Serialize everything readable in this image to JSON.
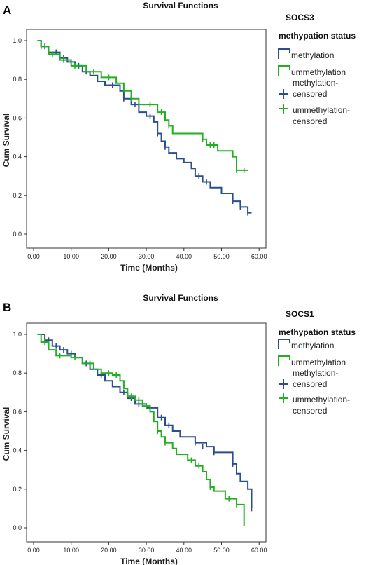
{
  "chart_data": [
    {
      "panel": "A",
      "type": "line",
      "title": "Survival Functions",
      "xlabel": "Time (Months)",
      "ylabel": "Cum Survival",
      "xlim": [
        0,
        60
      ],
      "ylim": [
        0,
        1
      ],
      "x_ticks": [
        "0.00",
        "10.00",
        "20.00",
        "30.00",
        "40.00",
        "50.00",
        "60.00"
      ],
      "y_ticks": [
        "0.0",
        "0.2",
        "0.4",
        "0.6",
        "0.8",
        "1.0"
      ],
      "legend": {
        "title_lines": [
          "SOCS3",
          "methypation status"
        ],
        "entries": [
          "methylation",
          "ummethylation",
          "methylation-censored",
          "ummethylation-censored"
        ]
      },
      "series": [
        {
          "name": "methylation",
          "color": "#2c4e8e",
          "points": [
            [
              1,
              1.0
            ],
            [
              2,
              0.97
            ],
            [
              4,
              0.94
            ],
            [
              7,
              0.91
            ],
            [
              9,
              0.89
            ],
            [
              11,
              0.87
            ],
            [
              13,
              0.84
            ],
            [
              15,
              0.82
            ],
            [
              17,
              0.79
            ],
            [
              19,
              0.77
            ],
            [
              23,
              0.74
            ],
            [
              24,
              0.7
            ],
            [
              26,
              0.67
            ],
            [
              28,
              0.63
            ],
            [
              30,
              0.61
            ],
            [
              32,
              0.58
            ],
            [
              33,
              0.52
            ],
            [
              34,
              0.48
            ],
            [
              35,
              0.45
            ],
            [
              36,
              0.42
            ],
            [
              38,
              0.39
            ],
            [
              40,
              0.37
            ],
            [
              42,
              0.34
            ],
            [
              43,
              0.3
            ],
            [
              45,
              0.27
            ],
            [
              47,
              0.24
            ],
            [
              50,
              0.21
            ],
            [
              53,
              0.17
            ],
            [
              55,
              0.14
            ],
            [
              57,
              0.11
            ],
            [
              58,
              0.11
            ]
          ],
          "censored": [
            [
              3,
              0.97
            ],
            [
              6,
              0.94
            ],
            [
              8,
              0.91
            ],
            [
              10,
              0.89
            ],
            [
              12,
              0.87
            ],
            [
              14,
              0.84
            ],
            [
              21,
              0.77
            ],
            [
              24,
              0.7
            ],
            [
              27,
              0.67
            ],
            [
              31,
              0.61
            ],
            [
              33,
              0.52
            ],
            [
              35,
              0.45
            ],
            [
              44,
              0.3
            ],
            [
              46,
              0.27
            ],
            [
              53,
              0.17
            ],
            [
              55,
              0.14
            ],
            [
              57,
              0.11
            ]
          ]
        },
        {
          "name": "ummethylation",
          "color": "#22b022",
          "points": [
            [
              1,
              1.0
            ],
            [
              2,
              0.97
            ],
            [
              4,
              0.93
            ],
            [
              7,
              0.9
            ],
            [
              10,
              0.87
            ],
            [
              14,
              0.84
            ],
            [
              18,
              0.81
            ],
            [
              22,
              0.78
            ],
            [
              24,
              0.74
            ],
            [
              26,
              0.7
            ],
            [
              28,
              0.67
            ],
            [
              33,
              0.63
            ],
            [
              35,
              0.59
            ],
            [
              36,
              0.56
            ],
            [
              37,
              0.52
            ],
            [
              45,
              0.49
            ],
            [
              46,
              0.46
            ],
            [
              48,
              0.46
            ],
            [
              49,
              0.43
            ],
            [
              53,
              0.4
            ],
            [
              54,
              0.33
            ],
            [
              57,
              0.33
            ]
          ],
          "censored": [
            [
              2,
              0.97
            ],
            [
              5,
              0.93
            ],
            [
              8,
              0.9
            ],
            [
              11,
              0.87
            ],
            [
              16,
              0.84
            ],
            [
              20,
              0.81
            ],
            [
              26,
              0.7
            ],
            [
              31,
              0.67
            ],
            [
              34,
              0.63
            ],
            [
              36,
              0.56
            ],
            [
              45,
              0.49
            ],
            [
              47,
              0.46
            ],
            [
              48,
              0.46
            ],
            [
              54,
              0.33
            ],
            [
              56,
              0.33
            ]
          ]
        }
      ]
    },
    {
      "panel": "B",
      "type": "line",
      "title": "Survival Functions",
      "xlabel": "Time (Months)",
      "ylabel": "Cum Survival",
      "xlim": [
        0,
        60
      ],
      "ylim": [
        0,
        1
      ],
      "x_ticks": [
        "0.00",
        "10.00",
        "20.00",
        "30.00",
        "40.00",
        "50.00",
        "60.00"
      ],
      "y_ticks": [
        "0.0",
        "0.2",
        "0.4",
        "0.6",
        "0.8",
        "1.0"
      ],
      "legend": {
        "title_lines": [
          "SOCS1",
          "methypation status"
        ],
        "entries": [
          "methylation",
          "ummethylation",
          "methylation-censored",
          "ummethylation-censored"
        ]
      },
      "series": [
        {
          "name": "methylation",
          "color": "#2c4e8e",
          "points": [
            [
              1,
              1.0
            ],
            [
              3,
              0.97
            ],
            [
              5,
              0.94
            ],
            [
              7,
              0.92
            ],
            [
              9,
              0.9
            ],
            [
              11,
              0.88
            ],
            [
              13,
              0.85
            ],
            [
              15,
              0.82
            ],
            [
              17,
              0.79
            ],
            [
              19,
              0.76
            ],
            [
              21,
              0.73
            ],
            [
              23,
              0.7
            ],
            [
              25,
              0.67
            ],
            [
              27,
              0.64
            ],
            [
              30,
              0.62
            ],
            [
              33,
              0.57
            ],
            [
              35,
              0.53
            ],
            [
              37,
              0.5
            ],
            [
              39,
              0.47
            ],
            [
              43,
              0.44
            ],
            [
              46,
              0.42
            ],
            [
              48,
              0.39
            ],
            [
              50,
              0.39
            ],
            [
              53,
              0.33
            ],
            [
              54,
              0.28
            ],
            [
              55,
              0.24
            ],
            [
              57,
              0.2
            ],
            [
              58,
              0.1
            ]
          ],
          "censored": [
            [
              4,
              0.97
            ],
            [
              6,
              0.94
            ],
            [
              8,
              0.92
            ],
            [
              10,
              0.9
            ],
            [
              14,
              0.85
            ],
            [
              18,
              0.79
            ],
            [
              24,
              0.7
            ],
            [
              26,
              0.67
            ],
            [
              28,
              0.64
            ],
            [
              31,
              0.62
            ],
            [
              34,
              0.57
            ],
            [
              36,
              0.53
            ],
            [
              43,
              0.44
            ],
            [
              45,
              0.42
            ],
            [
              48,
              0.39
            ],
            [
              53,
              0.33
            ],
            [
              58,
              0.1
            ]
          ]
        },
        {
          "name": "ummethylation",
          "color": "#22b022",
          "points": [
            [
              1,
              1.0
            ],
            [
              2,
              0.96
            ],
            [
              4,
              0.92
            ],
            [
              6,
              0.89
            ],
            [
              10,
              0.88
            ],
            [
              13,
              0.85
            ],
            [
              16,
              0.82
            ],
            [
              18,
              0.8
            ],
            [
              21,
              0.79
            ],
            [
              23,
              0.76
            ],
            [
              24,
              0.72
            ],
            [
              25,
              0.68
            ],
            [
              27,
              0.66
            ],
            [
              29,
              0.63
            ],
            [
              31,
              0.6
            ],
            [
              32,
              0.55
            ],
            [
              33,
              0.5
            ],
            [
              34,
              0.47
            ],
            [
              35,
              0.44
            ],
            [
              37,
              0.41
            ],
            [
              38,
              0.38
            ],
            [
              41,
              0.35
            ],
            [
              43,
              0.32
            ],
            [
              45,
              0.29
            ],
            [
              46,
              0.25
            ],
            [
              47,
              0.21
            ],
            [
              48,
              0.19
            ],
            [
              51,
              0.15
            ],
            [
              54,
              0.12
            ],
            [
              55,
              0.12
            ],
            [
              56,
              0.01
            ]
          ],
          "censored": [
            [
              3,
              0.96
            ],
            [
              7,
              0.89
            ],
            [
              11,
              0.88
            ],
            [
              15,
              0.85
            ],
            [
              20,
              0.8
            ],
            [
              22,
              0.79
            ],
            [
              26,
              0.68
            ],
            [
              28,
              0.66
            ],
            [
              30,
              0.63
            ],
            [
              33,
              0.5
            ],
            [
              35,
              0.44
            ],
            [
              42,
              0.35
            ],
            [
              44,
              0.32
            ],
            [
              47,
              0.21
            ],
            [
              52,
              0.15
            ],
            [
              54,
              0.12
            ]
          ]
        }
      ]
    }
  ]
}
